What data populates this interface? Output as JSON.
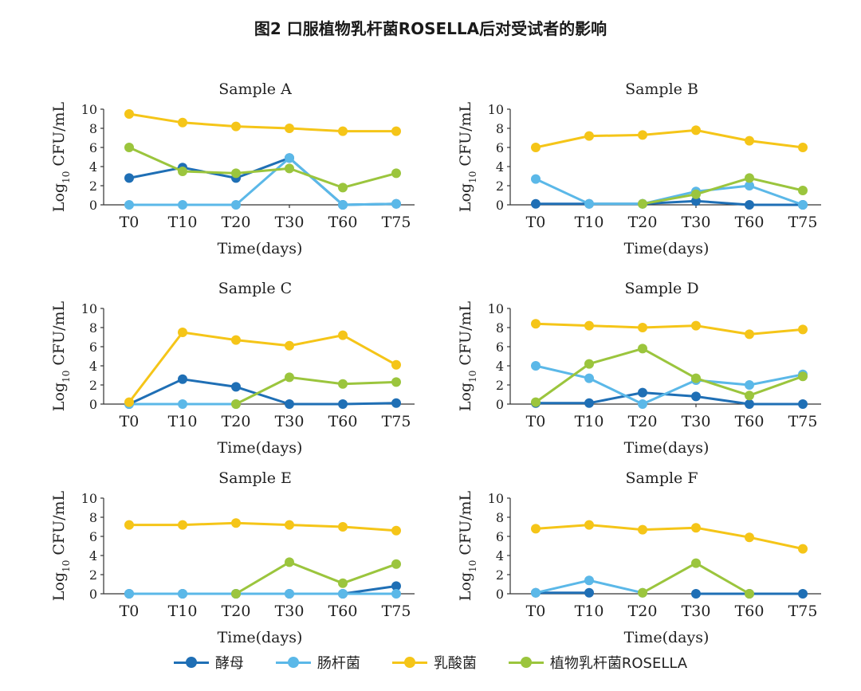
{
  "figure_title": "图2 口服植物乳杆菌ROSELLA后对受试者的影响",
  "legend": [
    {
      "label": "酵母",
      "color": "#1f6fb5"
    },
    {
      "label": "肠杆菌",
      "color": "#5bb8e8"
    },
    {
      "label": "乳酸菌",
      "color": "#f5c518"
    },
    {
      "label": "植物乳杆菌ROSELLA",
      "color": "#9bc53d"
    }
  ],
  "chart_data": [
    {
      "type": "line",
      "title": "Sample A",
      "xlabel": "Time(days)",
      "ylabel": "Log10 CFU/mL",
      "categories": [
        "T0",
        "T10",
        "T20",
        "T30",
        "T60",
        "T75"
      ],
      "yticks": [
        0,
        2,
        4,
        6,
        8,
        10
      ],
      "ylim": [
        0,
        10
      ],
      "series": [
        {
          "name": "酵母",
          "values": [
            2.8,
            3.9,
            2.8,
            4.9,
            0,
            0.1
          ]
        },
        {
          "name": "肠杆菌",
          "values": [
            0,
            0,
            0,
            4.9,
            0,
            0.1
          ]
        },
        {
          "name": "乳酸菌",
          "values": [
            9.5,
            8.6,
            8.2,
            8.0,
            7.7,
            7.7
          ]
        },
        {
          "name": "植物乳杆菌ROSELLA",
          "values": [
            6.0,
            3.5,
            3.3,
            3.8,
            1.8,
            3.3
          ]
        }
      ]
    },
    {
      "type": "line",
      "title": "Sample B",
      "xlabel": "Time(days)",
      "ylabel": "Log10 CFU/mL",
      "categories": [
        "T0",
        "T10",
        "T20",
        "T30",
        "T60",
        "T75"
      ],
      "yticks": [
        0,
        2,
        4,
        6,
        8,
        10
      ],
      "ylim": [
        0,
        10
      ],
      "series": [
        {
          "name": "酵母",
          "values": [
            0.1,
            0.1,
            0.1,
            0.4,
            0,
            0
          ]
        },
        {
          "name": "肠杆菌",
          "values": [
            2.7,
            0.1,
            0.1,
            1.4,
            2.0,
            0
          ]
        },
        {
          "name": "乳酸菌",
          "values": [
            6.0,
            7.2,
            7.3,
            7.8,
            6.7,
            6.0
          ]
        },
        {
          "name": "植物乳杆菌ROSELLA",
          "values": [
            null,
            null,
            0.1,
            1.1,
            2.8,
            1.5
          ]
        }
      ]
    },
    {
      "type": "line",
      "title": "Sample C",
      "xlabel": "Time(days)",
      "ylabel": "Log10 CFU/mL",
      "categories": [
        "T0",
        "T10",
        "T20",
        "T30",
        "T60",
        "T75"
      ],
      "yticks": [
        0,
        2,
        4,
        6,
        8,
        10
      ],
      "ylim": [
        0,
        10
      ],
      "series": [
        {
          "name": "酵母",
          "values": [
            0,
            2.6,
            1.8,
            0,
            0,
            0.1
          ]
        },
        {
          "name": "肠杆菌",
          "values": [
            0,
            0,
            0,
            null,
            null,
            null
          ]
        },
        {
          "name": "乳酸菌",
          "values": [
            0.2,
            7.5,
            6.7,
            6.1,
            7.2,
            4.1
          ]
        },
        {
          "name": "植物乳杆菌ROSELLA",
          "values": [
            null,
            null,
            0,
            2.8,
            2.1,
            2.3
          ]
        }
      ]
    },
    {
      "type": "line",
      "title": "Sample D",
      "xlabel": "Time(days)",
      "ylabel": "Log10 CFU/mL",
      "categories": [
        "T0",
        "T10",
        "T20",
        "T30",
        "T60",
        "T75"
      ],
      "yticks": [
        0,
        2,
        4,
        6,
        8,
        10
      ],
      "ylim": [
        0,
        10
      ],
      "series": [
        {
          "name": "酵母",
          "values": [
            0.1,
            0.1,
            1.2,
            0.8,
            0,
            0
          ]
        },
        {
          "name": "肠杆菌",
          "values": [
            4.0,
            2.7,
            0,
            2.5,
            2.0,
            3.1
          ]
        },
        {
          "name": "乳酸菌",
          "values": [
            8.4,
            8.2,
            8.0,
            8.2,
            7.3,
            7.8
          ]
        },
        {
          "name": "植物乳杆菌ROSELLA",
          "values": [
            0.2,
            4.2,
            5.8,
            2.7,
            0.9,
            2.9
          ]
        }
      ]
    },
    {
      "type": "line",
      "title": "Sample E",
      "xlabel": "Time(days)",
      "ylabel": "Log10 CFU/mL",
      "categories": [
        "T0",
        "T10",
        "T20",
        "T30",
        "T60",
        "T75"
      ],
      "yticks": [
        0,
        2,
        4,
        6,
        8,
        10
      ],
      "ylim": [
        0,
        10
      ],
      "series": [
        {
          "name": "酵母",
          "values": [
            0,
            0,
            0,
            0,
            0,
            0.8
          ]
        },
        {
          "name": "肠杆菌",
          "values": [
            0,
            0,
            0,
            0,
            0,
            0
          ]
        },
        {
          "name": "乳酸菌",
          "values": [
            7.2,
            7.2,
            7.4,
            7.2,
            7.0,
            6.6
          ]
        },
        {
          "name": "植物乳杆菌ROSELLA",
          "values": [
            null,
            null,
            0,
            3.3,
            1.1,
            3.1
          ]
        }
      ]
    },
    {
      "type": "line",
      "title": "Sample F",
      "xlabel": "Time(days)",
      "ylabel": "Log10 CFU/mL",
      "categories": [
        "T0",
        "T10",
        "T20",
        "T30",
        "T60",
        "T75"
      ],
      "yticks": [
        0,
        2,
        4,
        6,
        8,
        10
      ],
      "ylim": [
        0,
        10
      ],
      "series": [
        {
          "name": "酵母",
          "values": [
            0.1,
            0.1,
            null,
            0,
            0,
            0
          ]
        },
        {
          "name": "肠杆菌",
          "values": [
            0.1,
            1.4,
            0.1,
            null,
            null,
            null
          ]
        },
        {
          "name": "乳酸菌",
          "values": [
            6.8,
            7.2,
            6.7,
            6.9,
            5.9,
            4.7
          ]
        },
        {
          "name": "植物乳杆菌ROSELLA",
          "values": [
            null,
            null,
            0.1,
            3.2,
            0,
            null
          ]
        }
      ]
    }
  ]
}
